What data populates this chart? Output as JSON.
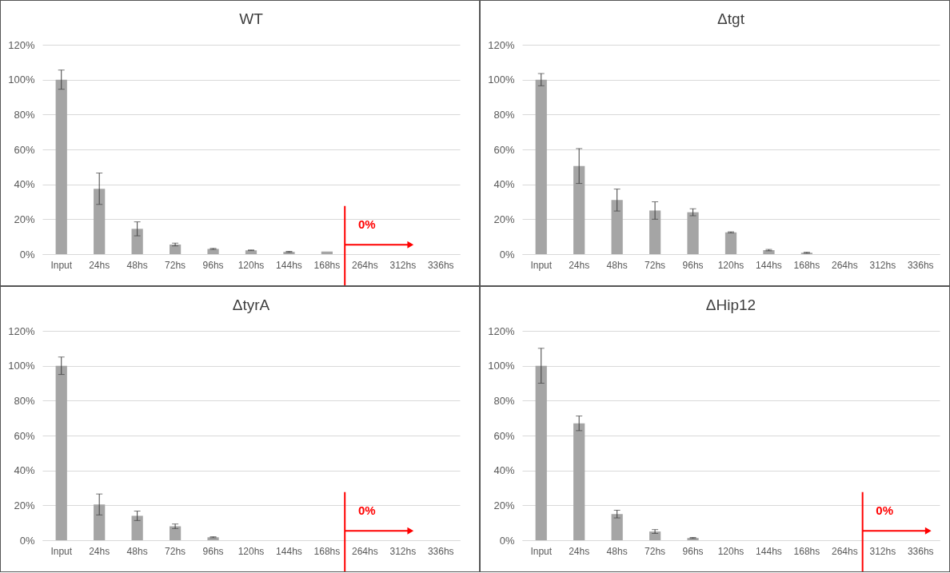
{
  "chart_data": [
    {
      "type": "bar",
      "title": "WT",
      "categories": [
        "Input",
        "24hs",
        "48hs",
        "72hs",
        "96hs",
        "120hs",
        "144hs",
        "168hs",
        "264hs",
        "312hs",
        "336hs"
      ],
      "color": "#a5a5a5",
      "values": [
        100,
        37.5,
        14.5,
        5.5,
        3,
        2.2,
        1.3,
        1.5,
        0,
        0,
        0
      ],
      "errors": [
        5.5,
        9,
        4,
        0.8,
        0.3,
        0.2,
        0.3,
        null,
        null,
        null,
        null
      ],
      "ylim": [
        0,
        120
      ],
      "yticks": [
        {
          "value": 0,
          "label": "0%"
        },
        {
          "value": 20,
          "label": "20%"
        },
        {
          "value": 40,
          "label": "40%"
        },
        {
          "value": 60,
          "label": "60%"
        },
        {
          "value": 80,
          "label": "80%"
        },
        {
          "value": 100,
          "label": "100%"
        },
        {
          "value": 120,
          "label": "120%"
        }
      ],
      "grid": "y",
      "ref_lines": [
        {
          "axis": "x",
          "value": "264hs",
          "label": "0%",
          "color": "#ff0000"
        }
      ]
    },
    {
      "type": "bar",
      "title": "Δtgt",
      "categories": [
        "Input",
        "24hs",
        "48hs",
        "72hs",
        "96hs",
        "120hs",
        "144hs",
        "168hs",
        "264hs",
        "312hs",
        "336hs"
      ],
      "color": "#a5a5a5",
      "values": [
        100,
        50.5,
        31,
        25,
        24,
        12.5,
        2.3,
        0.8,
        0,
        0,
        0
      ],
      "errors": [
        3.5,
        10,
        6.3,
        5,
        2,
        0.3,
        0.4,
        0.3,
        null,
        null,
        null
      ],
      "ylim": [
        0,
        120
      ],
      "yticks": [
        {
          "value": 0,
          "label": "0%"
        },
        {
          "value": 20,
          "label": "20%"
        },
        {
          "value": 40,
          "label": "40%"
        },
        {
          "value": 60,
          "label": "60%"
        },
        {
          "value": 80,
          "label": "80%"
        },
        {
          "value": 100,
          "label": "100%"
        },
        {
          "value": 120,
          "label": "120%"
        }
      ],
      "grid": "y"
    },
    {
      "type": "bar",
      "title": "ΔtyrA",
      "categories": [
        "Input",
        "24hs",
        "48hs",
        "72hs",
        "96hs",
        "120hs",
        "144hs",
        "168hs",
        "264hs",
        "312hs",
        "336hs"
      ],
      "color": "#a5a5a5",
      "values": [
        100,
        20.5,
        14,
        8,
        1.7,
        0,
        0,
        0,
        0,
        0,
        0
      ],
      "errors": [
        5,
        6,
        2.7,
        1.3,
        0.3,
        null,
        null,
        null,
        null,
        null,
        null
      ],
      "ylim": [
        0,
        120
      ],
      "yticks": [
        {
          "value": 0,
          "label": "0%"
        },
        {
          "value": 20,
          "label": "20%"
        },
        {
          "value": 40,
          "label": "40%"
        },
        {
          "value": 60,
          "label": "60%"
        },
        {
          "value": 80,
          "label": "80%"
        },
        {
          "value": 100,
          "label": "100%"
        },
        {
          "value": 120,
          "label": "120%"
        }
      ],
      "grid": "y",
      "ref_lines": [
        {
          "axis": "x",
          "value": "264hs",
          "label": "0%",
          "color": "#ff0000"
        }
      ]
    },
    {
      "type": "bar",
      "title": "ΔHip12",
      "categories": [
        "Input",
        "24hs",
        "48hs",
        "72hs",
        "96hs",
        "120hs",
        "144hs",
        "168hs",
        "264hs",
        "312hs",
        "336hs"
      ],
      "color": "#a5a5a5",
      "values": [
        100,
        67,
        15,
        5,
        1.3,
        0,
        0,
        0,
        0,
        0,
        0
      ],
      "errors": [
        10,
        4.2,
        2.2,
        1.1,
        0.3,
        null,
        null,
        null,
        null,
        null,
        null
      ],
      "ylim": [
        0,
        120
      ],
      "yticks": [
        {
          "value": 0,
          "label": "0%"
        },
        {
          "value": 20,
          "label": "20%"
        },
        {
          "value": 40,
          "label": "40%"
        },
        {
          "value": 60,
          "label": "60%"
        },
        {
          "value": 80,
          "label": "80%"
        },
        {
          "value": 100,
          "label": "100%"
        },
        {
          "value": 120,
          "label": "120%"
        }
      ],
      "grid": "y",
      "ref_lines": [
        {
          "axis": "x",
          "value": "312hs",
          "label": "0%",
          "color": "#ff0000"
        }
      ]
    }
  ]
}
